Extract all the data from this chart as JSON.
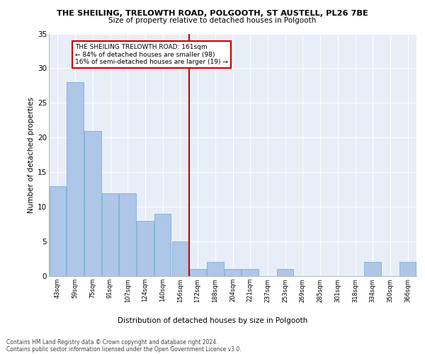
{
  "title": "THE SHEILING, TRELOWTH ROAD, POLGOOTH, ST AUSTELL, PL26 7BE",
  "subtitle": "Size of property relative to detached houses in Polgooth",
  "xlabel": "Distribution of detached houses by size in Polgooth",
  "ylabel": "Number of detached properties",
  "bar_color": "#aec6e8",
  "bar_edge_color": "#7aafd4",
  "vline_color": "#cc0000",
  "vline_x_index": 7,
  "annotation_text": "THE SHEILING TRELOWTH ROAD: 161sqm\n← 84% of detached houses are smaller (98)\n16% of semi-detached houses are larger (19) →",
  "annotation_box_color": "#ffffff",
  "annotation_box_edge_color": "#cc0000",
  "bins": [
    43,
    59,
    75,
    91,
    107,
    124,
    140,
    156,
    172,
    188,
    204,
    221,
    237,
    253,
    269,
    285,
    301,
    318,
    334,
    350,
    366
  ],
  "counts": [
    13,
    28,
    21,
    12,
    12,
    8,
    9,
    5,
    1,
    2,
    1,
    1,
    0,
    1,
    0,
    0,
    0,
    0,
    2,
    0,
    2
  ],
  "xtick_labels": [
    "43sqm",
    "59sqm",
    "75sqm",
    "91sqm",
    "107sqm",
    "124sqm",
    "140sqm",
    "156sqm",
    "172sqm",
    "188sqm",
    "204sqm",
    "221sqm",
    "237sqm",
    "253sqm",
    "269sqm",
    "285sqm",
    "301sqm",
    "318sqm",
    "334sqm",
    "350sqm",
    "366sqm"
  ],
  "ylim": [
    0,
    35
  ],
  "yticks": [
    0,
    5,
    10,
    15,
    20,
    25,
    30,
    35
  ],
  "background_color": "#e8eef7",
  "grid_color": "#ffffff",
  "footer_line1": "Contains HM Land Registry data © Crown copyright and database right 2024.",
  "footer_line2": "Contains public sector information licensed under the Open Government Licence v3.0."
}
